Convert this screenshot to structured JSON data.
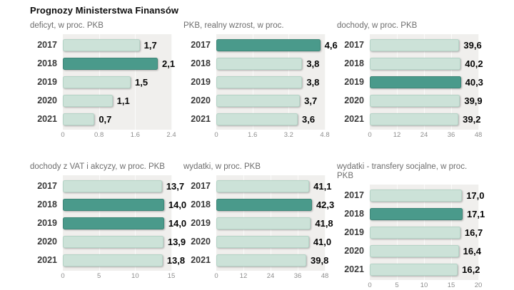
{
  "page_title": "Prognozy Ministerstwa Finansów",
  "colors": {
    "bar_light": "#cce2d8",
    "bar_light_border": "#b4d3c6",
    "bar_dark": "#4a9a8b",
    "bar_dark_border": "#3e8678",
    "panel_background": "#f0efed",
    "grid_line": "#fbfbfa",
    "page_background": "#ffffff",
    "value_text": "#050505",
    "subtitle_text": "#6e6e6e",
    "tick_text": "#8e8e8e"
  },
  "chart_data": [
    {
      "id": "deficyt",
      "type": "bar",
      "orientation": "horizontal",
      "title": "deficyt, w proc. PKB",
      "categories": [
        "2017",
        "2018",
        "2019",
        "2020",
        "2021"
      ],
      "values": [
        1.7,
        2.1,
        1.5,
        1.1,
        0.7
      ],
      "value_labels": [
        "1,7",
        "2,1",
        "1,5",
        "1,1",
        "0,7"
      ],
      "highlight_indices": [
        1
      ],
      "xlim": [
        0,
        2.4
      ],
      "ticks": [
        "0",
        "0.8",
        "1.6",
        "2.4"
      ],
      "grid": true,
      "legend": "none"
    },
    {
      "id": "pkb-realny-wzrost",
      "type": "bar",
      "orientation": "horizontal",
      "title": "PKB, realny wzrost, w proc.",
      "categories": [
        "2017",
        "2018",
        "2019",
        "2020",
        "2021"
      ],
      "values": [
        4.6,
        3.8,
        3.8,
        3.7,
        3.6
      ],
      "value_labels": [
        "4,6",
        "3,8",
        "3,8",
        "3,7",
        "3,6"
      ],
      "highlight_indices": [
        0
      ],
      "xlim": [
        0,
        4.8
      ],
      "ticks": [
        "0",
        "1.6",
        "3.2",
        "4.8"
      ],
      "grid": true,
      "legend": "none"
    },
    {
      "id": "dochody",
      "type": "bar",
      "orientation": "horizontal",
      "title": "dochody, w proc. PKB",
      "categories": [
        "2017",
        "2018",
        "2019",
        "2020",
        "2021"
      ],
      "values": [
        39.6,
        40.2,
        40.3,
        39.9,
        39.2
      ],
      "value_labels": [
        "39,6",
        "40,2",
        "40,3",
        "39,9",
        "39,2"
      ],
      "highlight_indices": [
        2
      ],
      "xlim": [
        0,
        48
      ],
      "ticks": [
        "0",
        "12",
        "24",
        "36",
        "48"
      ],
      "grid": true,
      "legend": "none"
    },
    {
      "id": "dochody-vat-akcyzy",
      "type": "bar",
      "orientation": "horizontal",
      "title": "dochody z VAT i akcyzy, w proc. PKB",
      "categories": [
        "2017",
        "2018",
        "2019",
        "2020",
        "2021"
      ],
      "values": [
        13.7,
        14.0,
        14.0,
        13.9,
        13.8
      ],
      "value_labels": [
        "13,7",
        "14,0",
        "14,0",
        "13,9",
        "13,8"
      ],
      "highlight_indices": [
        1,
        2
      ],
      "xlim": [
        0,
        15
      ],
      "ticks": [
        "0",
        "5",
        "10",
        "15"
      ],
      "grid": true,
      "legend": "none"
    },
    {
      "id": "wydatki",
      "type": "bar",
      "orientation": "horizontal",
      "title": "wydatki, w proc. PKB",
      "categories": [
        "2017",
        "2018",
        "2019",
        "2020",
        "2021"
      ],
      "values": [
        41.1,
        42.3,
        41.8,
        41.0,
        39.8
      ],
      "value_labels": [
        "41,1",
        "42,3",
        "41,8",
        "41,0",
        "39,8"
      ],
      "highlight_indices": [
        1
      ],
      "xlim": [
        0,
        48
      ],
      "ticks": [
        "0",
        "12",
        "24",
        "36",
        "48"
      ],
      "grid": true,
      "legend": "none"
    },
    {
      "id": "wydatki-transfery-socjalne",
      "type": "bar",
      "orientation": "horizontal",
      "title": "wydatki - transfery socjalne, w proc. PKB",
      "categories": [
        "2017",
        "2018",
        "2019",
        "2020",
        "2021"
      ],
      "values": [
        17.0,
        17.1,
        16.7,
        16.4,
        16.2
      ],
      "value_labels": [
        "17,0",
        "17,1",
        "16,7",
        "16,4",
        "16,2"
      ],
      "highlight_indices": [
        1
      ],
      "xlim": [
        0,
        20
      ],
      "ticks": [
        "0",
        "5",
        "10",
        "15",
        "20"
      ],
      "grid": true,
      "legend": "none"
    }
  ]
}
